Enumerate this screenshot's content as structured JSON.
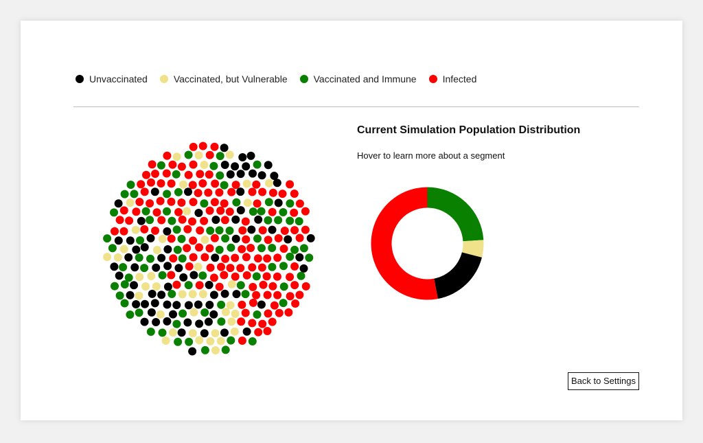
{
  "legend": {
    "items": [
      {
        "label": "Unvaccinated",
        "color": "#000000"
      },
      {
        "label": "Vaccinated, but Vulnerable",
        "color": "#f0e28a"
      },
      {
        "label": "Vaccinated and Immune",
        "color": "#0a8000"
      },
      {
        "label": "Infected",
        "color": "#ff0000"
      }
    ]
  },
  "distribution": {
    "title": "Current Simulation Population Distribution",
    "hint": "Hover to learn more about a segment"
  },
  "chart_data": {
    "type": "pie",
    "donut": true,
    "categories": [
      "Vaccinated and Immune",
      "Vaccinated, but Vulnerable",
      "Unvaccinated",
      "Infected"
    ],
    "values": [
      24,
      5,
      18,
      53
    ],
    "colors": [
      "#0a8000",
      "#f0e28a",
      "#000000",
      "#ff0000"
    ],
    "title": "",
    "xlabel": "",
    "ylabel": ""
  },
  "population": {
    "counts": {
      "Infected": 110,
      "Vaccinated and Immune": 50,
      "Unvaccinated": 37,
      "Vaccinated, but Vulnerable": 10
    },
    "highlight_color": "#ff6a3d"
  },
  "footer": {
    "back_label": "Back to Settings"
  }
}
